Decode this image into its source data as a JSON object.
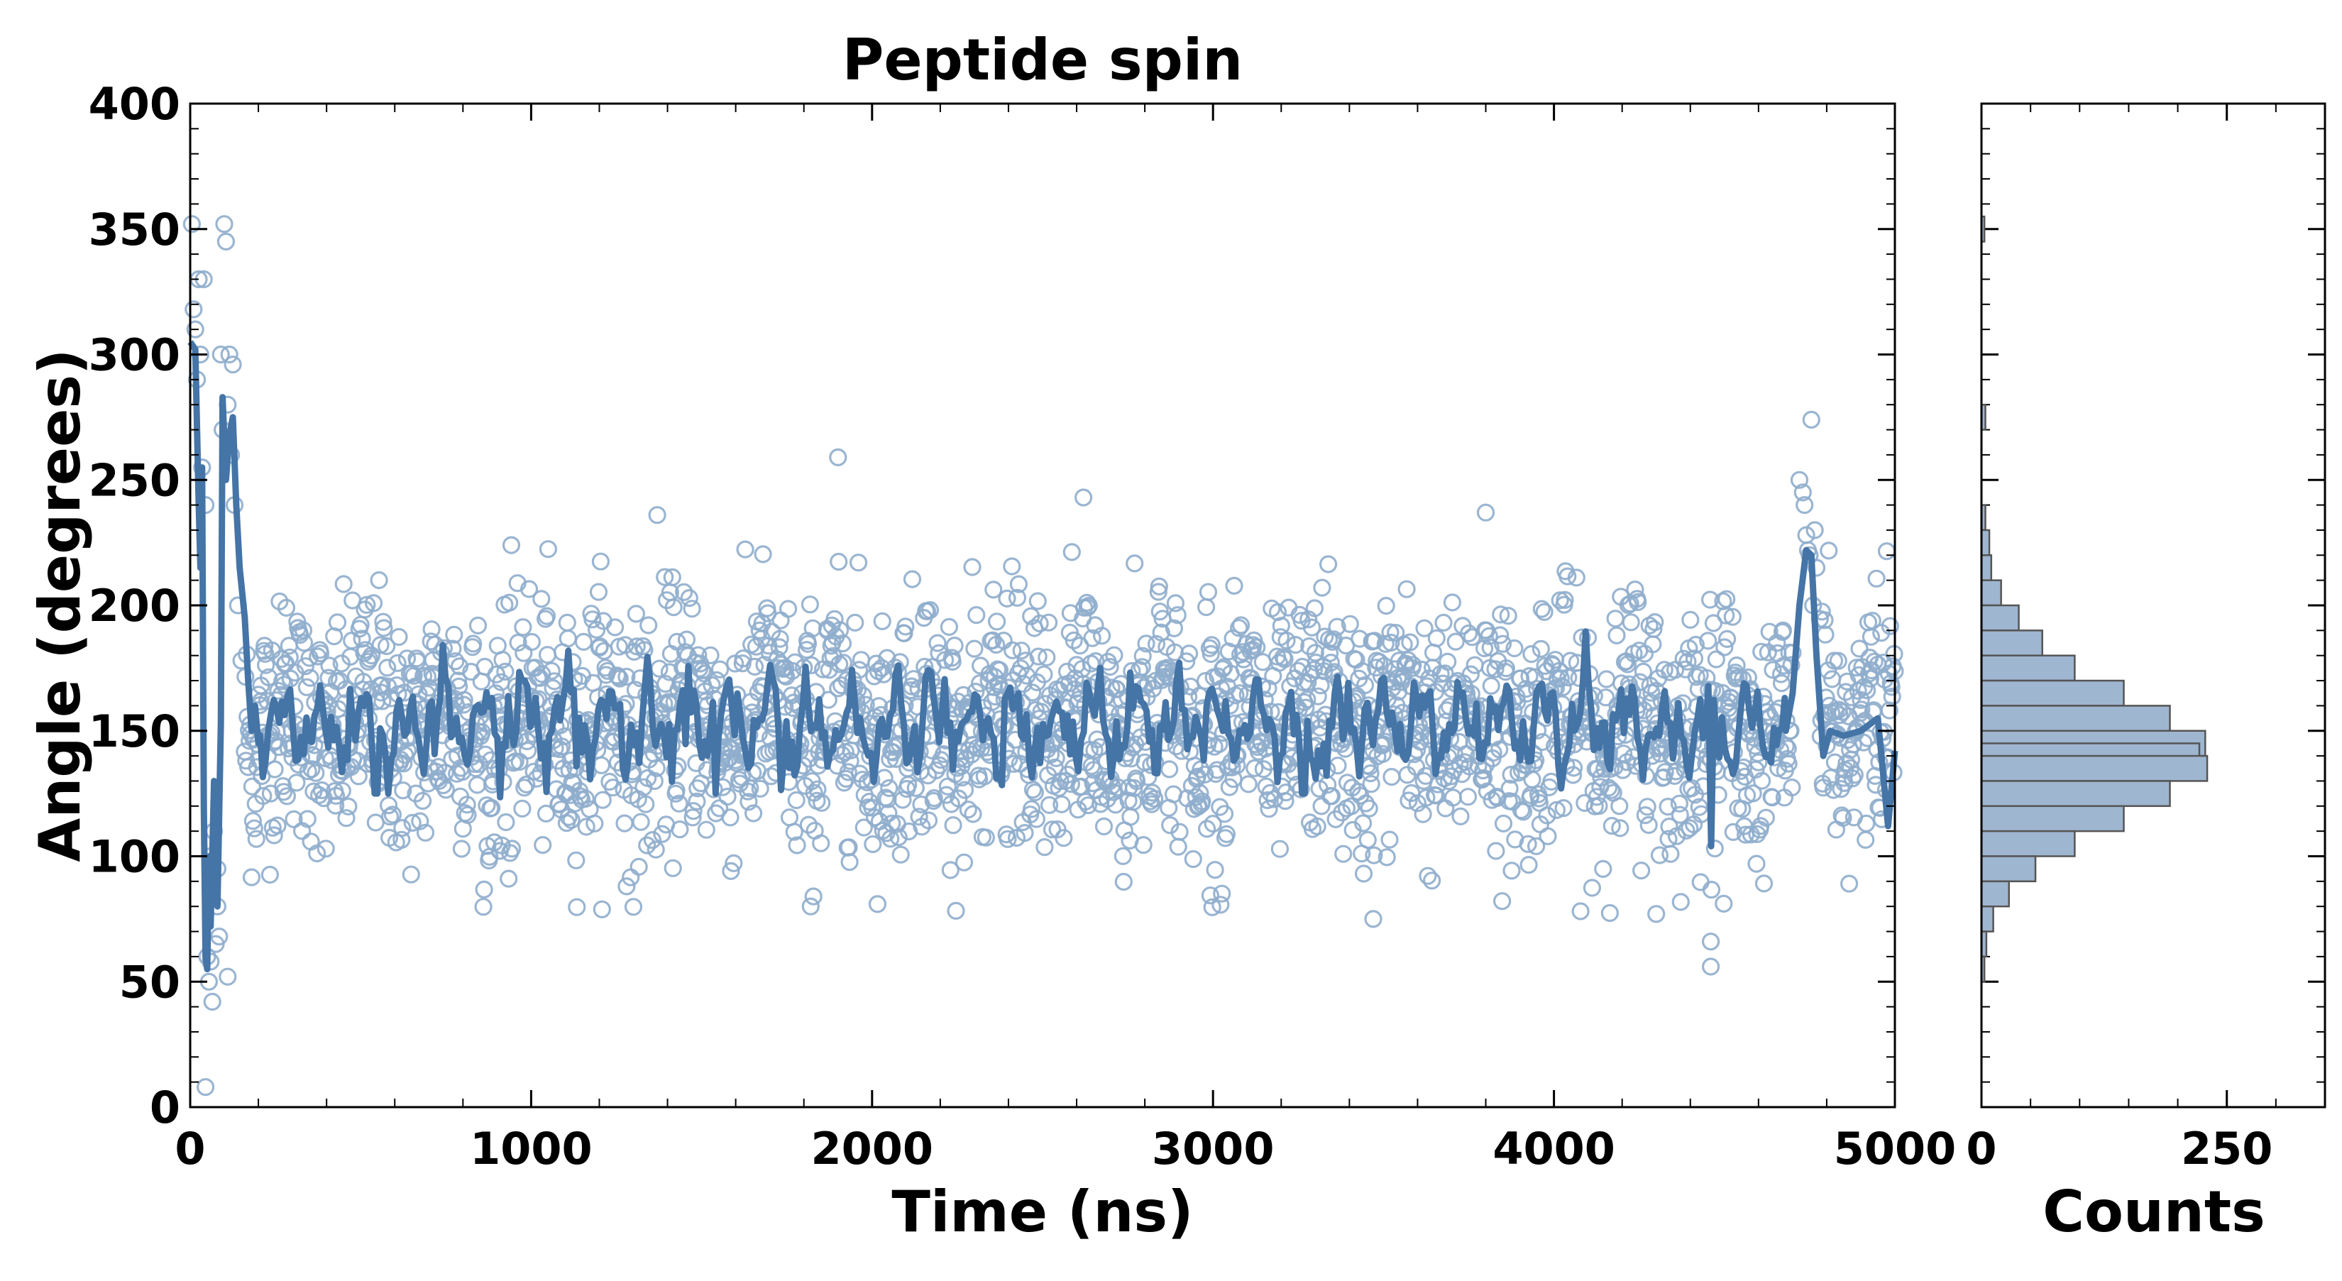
{
  "chart_data": [
    {
      "type": "scatter",
      "title": "Peptide spin",
      "xlabel": "Time (ns)",
      "ylabel": "Angle (degrees)",
      "xlim": [
        0,
        5000
      ],
      "ylim": [
        0,
        400
      ],
      "xticks": [
        0,
        1000,
        2000,
        3000,
        4000,
        5000
      ],
      "yticks": [
        0,
        50,
        100,
        150,
        200,
        250,
        300,
        350,
        400
      ],
      "grid": false,
      "colors": {
        "line": "#4574a6",
        "marker_edge": "#8fadcc"
      },
      "series": [
        {
          "kind": "scatter-open-circles",
          "description_points_note": "approximately 2500 samples, angle fluctuates around 150 with spread ~±50; early transient near 0-150 ns and spike near 4750 ns",
          "x_step": 2,
          "baseline": 152,
          "spread_sd": 24,
          "early_points": [
            [
              5,
              352
            ],
            [
              10,
              318
            ],
            [
              15,
              310
            ],
            [
              20,
              290
            ],
            [
              25,
              330
            ],
            [
              30,
              300
            ],
            [
              35,
              255
            ],
            [
              40,
              330
            ],
            [
              45,
              240
            ],
            [
              50,
              60
            ],
            [
              55,
              50
            ],
            [
              60,
              58
            ],
            [
              65,
              42
            ],
            [
              70,
              110
            ],
            [
              75,
              65
            ],
            [
              80,
              95
            ],
            [
              85,
              68
            ],
            [
              90,
              300
            ],
            [
              95,
              270
            ],
            [
              100,
              352
            ],
            [
              105,
              345
            ],
            [
              110,
              280
            ],
            [
              115,
              300
            ],
            [
              120,
              260
            ],
            [
              125,
              296
            ],
            [
              130,
              240
            ],
            [
              140,
              200
            ],
            [
              150,
              178
            ],
            [
              45,
              8
            ],
            [
              110,
              52
            ],
            [
              60,
              100
            ],
            [
              80,
              80
            ]
          ],
          "spike_points": [
            [
              4720,
              250
            ],
            [
              4730,
              245
            ],
            [
              4735,
              240
            ],
            [
              4740,
              228
            ],
            [
              4745,
              222
            ],
            [
              4750,
              220
            ],
            [
              4755,
              274
            ],
            [
              4760,
              200
            ],
            [
              4765,
              230
            ],
            [
              4770,
              215
            ]
          ],
          "outliers": [
            [
              1900,
              259
            ],
            [
              2620,
              243
            ],
            [
              1370,
              236
            ],
            [
              3800,
              237
            ],
            [
              4460,
              56
            ],
            [
              4460,
              66
            ],
            [
              3470,
              75
            ],
            [
              4300,
              77
            ],
            [
              1280,
              88
            ],
            [
              1820,
              80
            ]
          ]
        },
        {
          "kind": "line",
          "description": "running mean of angle",
          "points": [
            [
              0,
              305
            ],
            [
              15,
              302
            ],
            [
              25,
              240
            ],
            [
              30,
              215
            ],
            [
              35,
              255
            ],
            [
              40,
              120
            ],
            [
              45,
              60
            ],
            [
              50,
              55
            ],
            [
              55,
              100
            ],
            [
              60,
              72
            ],
            [
              70,
              130
            ],
            [
              80,
              80
            ],
            [
              90,
              153
            ],
            [
              95,
              283
            ],
            [
              105,
              250
            ],
            [
              115,
              268
            ],
            [
              125,
              275
            ],
            [
              135,
              240
            ],
            [
              145,
              215
            ],
            [
              160,
              195
            ],
            [
              170,
              170
            ],
            [
              180,
              150
            ],
            [
              190,
              160
            ],
            [
              200,
              145
            ],
            [
              4680,
              150
            ],
            [
              4700,
              165
            ],
            [
              4720,
              200
            ],
            [
              4740,
              222
            ],
            [
              4755,
              220
            ],
            [
              4770,
              180
            ],
            [
              4790,
              140
            ],
            [
              4810,
              150
            ],
            [
              4850,
              148
            ],
            [
              4900,
              150
            ],
            [
              4950,
              155
            ],
            [
              4980,
              112
            ],
            [
              5000,
              142
            ]
          ]
        }
      ],
      "histogram": {
        "xlabel": "Counts",
        "xlim": [
          0,
          350
        ],
        "xticks": [
          0,
          250
        ],
        "bins": [
          {
            "lo": 345,
            "hi": 355,
            "count": 3
          },
          {
            "lo": 270,
            "hi": 280,
            "count": 4
          },
          {
            "lo": 230,
            "hi": 240,
            "count": 4
          },
          {
            "lo": 220,
            "hi": 230,
            "count": 8
          },
          {
            "lo": 210,
            "hi": 220,
            "count": 10
          },
          {
            "lo": 200,
            "hi": 210,
            "count": 20
          },
          {
            "lo": 190,
            "hi": 200,
            "count": 38
          },
          {
            "lo": 180,
            "hi": 190,
            "count": 62
          },
          {
            "lo": 170,
            "hi": 180,
            "count": 95
          },
          {
            "lo": 160,
            "hi": 170,
            "count": 145
          },
          {
            "lo": 150,
            "hi": 160,
            "count": 192
          },
          {
            "lo": 140,
            "hi": 150,
            "count": 228
          },
          {
            "lo": 135,
            "hi": 145,
            "count": 222
          },
          {
            "lo": 130,
            "hi": 140,
            "count": 230
          },
          {
            "lo": 120,
            "hi": 130,
            "count": 192
          },
          {
            "lo": 110,
            "hi": 120,
            "count": 145
          },
          {
            "lo": 100,
            "hi": 110,
            "count": 95
          },
          {
            "lo": 90,
            "hi": 100,
            "count": 55
          },
          {
            "lo": 80,
            "hi": 90,
            "count": 28
          },
          {
            "lo": 70,
            "hi": 80,
            "count": 12
          },
          {
            "lo": 60,
            "hi": 70,
            "count": 5
          },
          {
            "lo": 50,
            "hi": 60,
            "count": 3
          }
        ],
        "color": "#9fb6d0",
        "edge": "#555555"
      }
    }
  ]
}
